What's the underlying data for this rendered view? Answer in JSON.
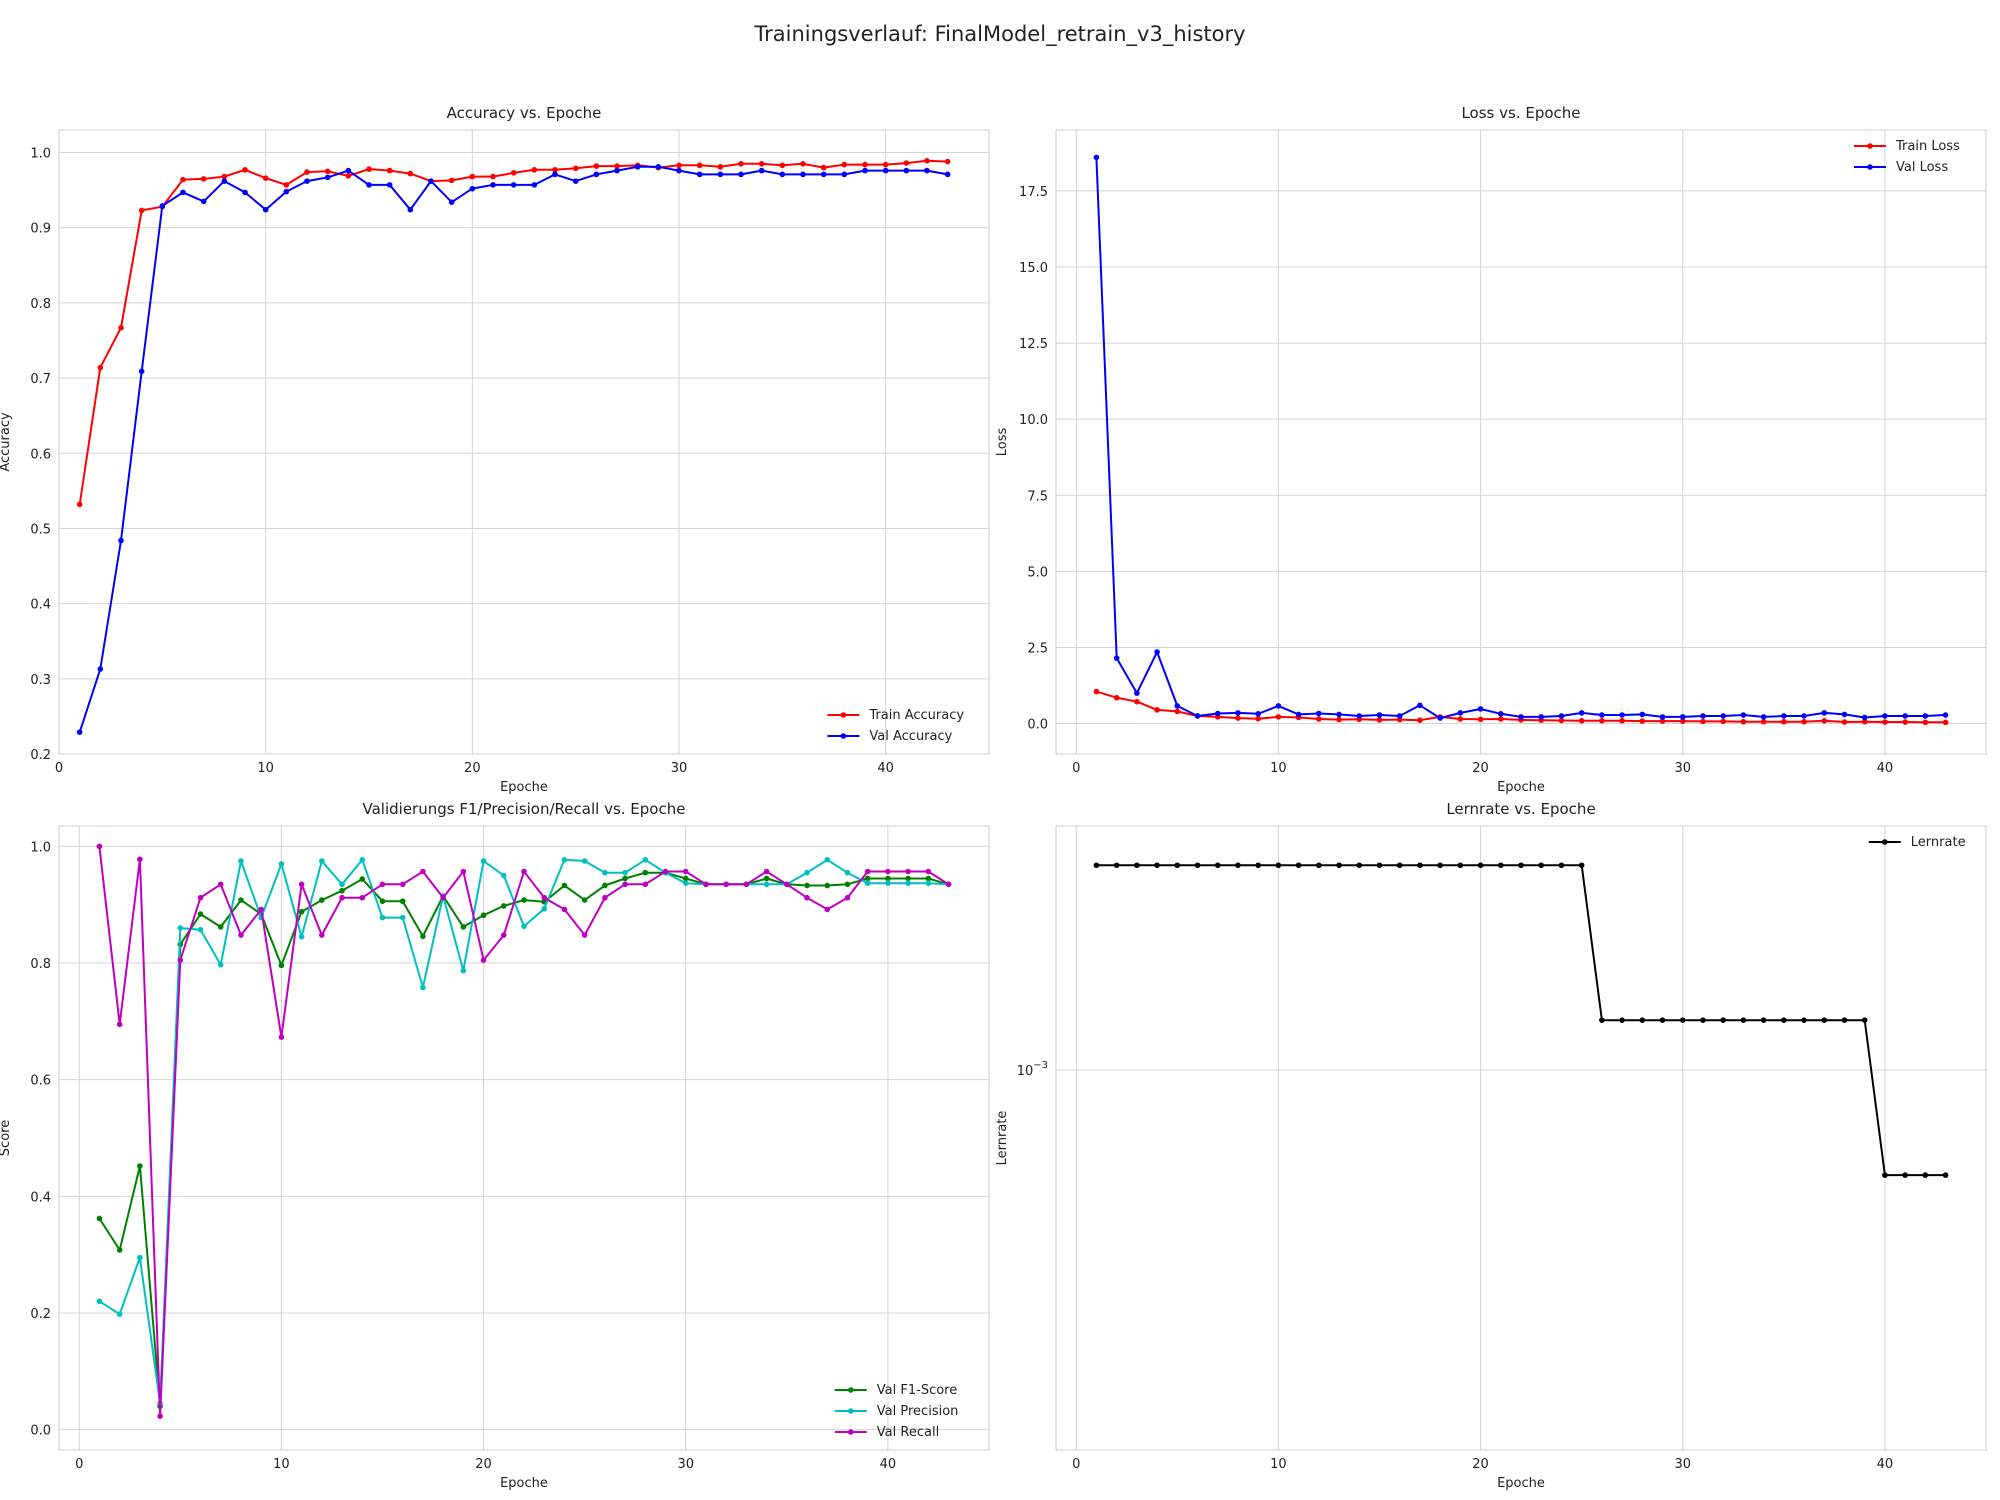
{
  "title": "Trainingsverlauf: FinalModel_retrain_v3_history",
  "chart_data": [
    {
      "id": "acc",
      "type": "line",
      "title": "Accuracy vs. Epoche",
      "xlabel": "Epoche",
      "ylabel": "Accuracy",
      "xlim": [
        0,
        45
      ],
      "ylim": [
        0.2,
        1.03
      ],
      "xticks": [
        0,
        10,
        20,
        30,
        40
      ],
      "yticks": [
        0.2,
        0.3,
        0.4,
        0.5,
        0.6,
        0.7,
        0.8,
        0.9,
        1.0
      ],
      "ytick_labels": [
        "0.2",
        "0.3",
        "0.4",
        "0.5",
        "0.6",
        "0.7",
        "0.8",
        "0.9",
        "1.0"
      ],
      "grid": true,
      "legend_position": "bottom-right",
      "x": [
        1,
        2,
        3,
        4,
        5,
        6,
        7,
        8,
        9,
        10,
        11,
        12,
        13,
        14,
        15,
        16,
        17,
        18,
        19,
        20,
        21,
        22,
        23,
        24,
        25,
        26,
        27,
        28,
        29,
        30,
        31,
        32,
        33,
        34,
        35,
        36,
        37,
        38,
        39,
        40,
        41,
        42,
        43
      ],
      "series": [
        {
          "name": "Train Accuracy",
          "color": "#ff0000",
          "values": [
            0.532,
            0.714,
            0.767,
            0.923,
            0.928,
            0.964,
            0.965,
            0.968,
            0.977,
            0.966,
            0.957,
            0.974,
            0.975,
            0.969,
            0.978,
            0.976,
            0.972,
            0.962,
            0.963,
            0.968,
            0.968,
            0.973,
            0.977,
            0.977,
            0.979,
            0.982,
            0.982,
            0.983,
            0.98,
            0.983,
            0.983,
            0.981,
            0.985,
            0.985,
            0.983,
            0.985,
            0.98,
            0.984,
            0.984,
            0.984,
            0.986,
            0.989,
            0.988
          ]
        },
        {
          "name": "Val Accuracy",
          "color": "#0000ff",
          "values": [
            0.229,
            0.313,
            0.484,
            0.709,
            0.929,
            0.947,
            0.935,
            0.962,
            0.947,
            0.924,
            0.948,
            0.962,
            0.967,
            0.976,
            0.957,
            0.957,
            0.924,
            0.962,
            0.934,
            0.952,
            0.957,
            0.957,
            0.957,
            0.971,
            0.962,
            0.971,
            0.976,
            0.981,
            0.981,
            0.976,
            0.971,
            0.971,
            0.971,
            0.976,
            0.971,
            0.971,
            0.971,
            0.971,
            0.976,
            0.976,
            0.976,
            0.976,
            0.971
          ]
        }
      ]
    },
    {
      "id": "loss",
      "type": "line",
      "title": "Loss vs. Epoche",
      "xlabel": "Epoche",
      "ylabel": "Loss",
      "xlim": [
        -1,
        45
      ],
      "ylim": [
        -1.0,
        19.5
      ],
      "xticks": [
        0,
        10,
        20,
        30,
        40
      ],
      "yticks": [
        0,
        2.5,
        5,
        7.5,
        10,
        12.5,
        15,
        17.5
      ],
      "ytick_labels": [
        "0.0",
        "2.5",
        "5.0",
        "7.5",
        "10.0",
        "12.5",
        "15.0",
        "17.5"
      ],
      "grid": true,
      "legend_position": "top-right",
      "x": [
        1,
        2,
        3,
        4,
        5,
        6,
        7,
        8,
        9,
        10,
        11,
        12,
        13,
        14,
        15,
        16,
        17,
        18,
        19,
        20,
        21,
        22,
        23,
        24,
        25,
        26,
        27,
        28,
        29,
        30,
        31,
        32,
        33,
        34,
        35,
        36,
        37,
        38,
        39,
        40,
        41,
        42,
        43
      ],
      "series": [
        {
          "name": "Train Loss",
          "color": "#ff0000",
          "values": [
            1.05,
            0.85,
            0.72,
            0.45,
            0.4,
            0.25,
            0.22,
            0.18,
            0.16,
            0.22,
            0.2,
            0.15,
            0.13,
            0.14,
            0.12,
            0.13,
            0.11,
            0.22,
            0.15,
            0.14,
            0.15,
            0.12,
            0.11,
            0.1,
            0.09,
            0.09,
            0.09,
            0.08,
            0.08,
            0.08,
            0.07,
            0.07,
            0.06,
            0.06,
            0.06,
            0.06,
            0.09,
            0.05,
            0.06,
            0.05,
            0.05,
            0.04,
            0.04
          ]
        },
        {
          "name": "Val Loss",
          "color": "#0000ff",
          "values": [
            18.6,
            2.15,
            1.0,
            2.35,
            0.58,
            0.25,
            0.33,
            0.35,
            0.32,
            0.58,
            0.3,
            0.33,
            0.3,
            0.25,
            0.28,
            0.25,
            0.6,
            0.18,
            0.35,
            0.48,
            0.32,
            0.22,
            0.22,
            0.25,
            0.35,
            0.28,
            0.28,
            0.3,
            0.22,
            0.22,
            0.25,
            0.25,
            0.28,
            0.22,
            0.25,
            0.25,
            0.35,
            0.3,
            0.2,
            0.25,
            0.25,
            0.25,
            0.28
          ]
        }
      ]
    },
    {
      "id": "f1",
      "type": "line",
      "title": "Validierungs F1/Precision/Recall vs. Epoche",
      "xlabel": "Epoche",
      "ylabel": "Score",
      "xlim": [
        -1,
        45
      ],
      "ylim": [
        -0.035,
        1.035
      ],
      "xticks": [
        0,
        10,
        20,
        30,
        40
      ],
      "yticks": [
        0,
        0.2,
        0.4,
        0.6,
        0.8,
        1.0
      ],
      "ytick_labels": [
        "0.0",
        "0.2",
        "0.4",
        "0.6",
        "0.8",
        "1.0"
      ],
      "grid": true,
      "legend_position": "bottom-right",
      "x": [
        1,
        2,
        3,
        4,
        5,
        6,
        7,
        8,
        9,
        10,
        11,
        12,
        13,
        14,
        15,
        16,
        17,
        18,
        19,
        20,
        21,
        22,
        23,
        24,
        25,
        26,
        27,
        28,
        29,
        30,
        31,
        32,
        33,
        34,
        35,
        36,
        37,
        38,
        39,
        40,
        41,
        42,
        43
      ],
      "series": [
        {
          "name": "Val F1-Score",
          "color": "#008000",
          "values": [
            0.362,
            0.308,
            0.452,
            0.04,
            0.832,
            0.884,
            0.862,
            0.908,
            0.884,
            0.796,
            0.888,
            0.908,
            0.924,
            0.944,
            0.906,
            0.906,
            0.846,
            0.915,
            0.862,
            0.882,
            0.898,
            0.908,
            0.905,
            0.933,
            0.908,
            0.933,
            0.945,
            0.955,
            0.955,
            0.945,
            0.935,
            0.935,
            0.935,
            0.945,
            0.935,
            0.933,
            0.933,
            0.935,
            0.945,
            0.945,
            0.945,
            0.945,
            0.935
          ]
        },
        {
          "name": "Val Precision",
          "color": "#00bfbf",
          "values": [
            0.22,
            0.198,
            0.295,
            0.045,
            0.86,
            0.857,
            0.797,
            0.975,
            0.878,
            0.97,
            0.845,
            0.975,
            0.935,
            0.977,
            0.878,
            0.878,
            0.758,
            0.915,
            0.787,
            0.975,
            0.95,
            0.863,
            0.893,
            0.977,
            0.975,
            0.955,
            0.955,
            0.977,
            0.955,
            0.937,
            0.935,
            0.935,
            0.935,
            0.935,
            0.935,
            0.955,
            0.977,
            0.955,
            0.937,
            0.937,
            0.937,
            0.937,
            0.935
          ]
        },
        {
          "name": "Val Recall",
          "color": "#bf00bf",
          "values": [
            1.0,
            0.695,
            0.978,
            0.023,
            0.805,
            0.912,
            0.935,
            0.848,
            0.892,
            0.673,
            0.935,
            0.848,
            0.912,
            0.912,
            0.935,
            0.935,
            0.957,
            0.912,
            0.957,
            0.805,
            0.848,
            0.957,
            0.912,
            0.892,
            0.848,
            0.912,
            0.935,
            0.935,
            0.957,
            0.957,
            0.935,
            0.935,
            0.935,
            0.957,
            0.935,
            0.912,
            0.892,
            0.912,
            0.957,
            0.957,
            0.957,
            0.957,
            0.935
          ]
        }
      ]
    },
    {
      "id": "lr",
      "type": "line",
      "title": "Lernrate vs. Epoche",
      "xlabel": "Epoche",
      "ylabel": "Lernrate",
      "yscale": "log",
      "xlim": [
        -1,
        45
      ],
      "ylim": [
        0.0001827,
        0.00298
      ],
      "xticks": [
        0,
        10,
        20,
        30,
        40
      ],
      "yticks": [
        0.001
      ],
      "ytick_labels": [
        "10^-3"
      ],
      "grid": true,
      "legend_position": "top-right",
      "x": [
        1,
        2,
        3,
        4,
        5,
        6,
        7,
        8,
        9,
        10,
        11,
        12,
        13,
        14,
        15,
        16,
        17,
        18,
        19,
        20,
        21,
        22,
        23,
        24,
        25,
        26,
        27,
        28,
        29,
        30,
        31,
        32,
        33,
        34,
        35,
        36,
        37,
        38,
        39,
        40,
        41,
        42,
        43
      ],
      "series": [
        {
          "name": "Lernrate",
          "color": "#000000",
          "values": [
            0.0025,
            0.0025,
            0.0025,
            0.0025,
            0.0025,
            0.0025,
            0.0025,
            0.0025,
            0.0025,
            0.0025,
            0.0025,
            0.0025,
            0.0025,
            0.0025,
            0.0025,
            0.0025,
            0.0025,
            0.0025,
            0.0025,
            0.0025,
            0.0025,
            0.0025,
            0.0025,
            0.0025,
            0.0025,
            0.00125,
            0.00125,
            0.00125,
            0.00125,
            0.00125,
            0.00125,
            0.00125,
            0.00125,
            0.00125,
            0.00125,
            0.00125,
            0.00125,
            0.00125,
            0.00125,
            0.000625,
            0.000625,
            0.000625,
            0.000625
          ]
        }
      ]
    }
  ]
}
